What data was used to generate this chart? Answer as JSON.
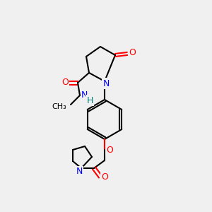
{
  "bg_color": "#f0f0f0",
  "atom_colors": {
    "C": "#000000",
    "N": "#0000ff",
    "O": "#ff0000",
    "H": "#008080"
  },
  "bond_color": "#000000",
  "bond_width": 1.5,
  "font_size": 9,
  "fig_size": [
    3.0,
    3.0
  ],
  "dpi": 100
}
